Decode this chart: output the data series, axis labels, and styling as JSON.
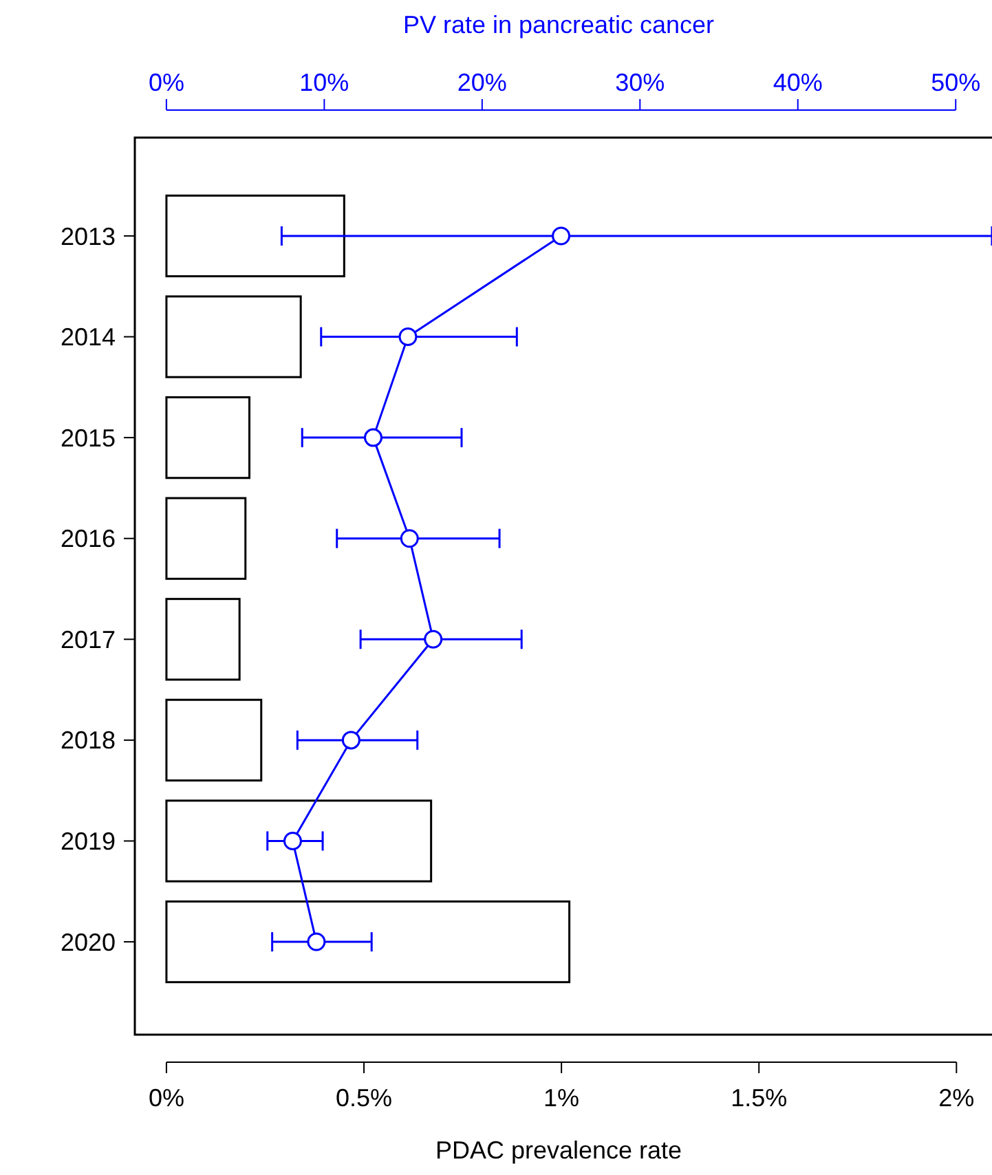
{
  "chart_data": {
    "type": "bar",
    "orientation": "horizontal",
    "categories": [
      "2013",
      "2014",
      "2015",
      "2016",
      "2017",
      "2018",
      "2019",
      "2020"
    ],
    "xlabel": "PDAC prevalence rate",
    "x2label": "PV rate in pancreatic cancer",
    "xlim": [
      -0.08,
      2.09
    ],
    "xticks": [
      {
        "value": 0,
        "label": "0%"
      },
      {
        "value": 0.5,
        "label": "0.5%"
      },
      {
        "value": 1,
        "label": "1%"
      },
      {
        "value": 1.5,
        "label": "1.5%"
      },
      {
        "value": 2,
        "label": "2%"
      }
    ],
    "x2lim": [
      -2,
      52.3
    ],
    "x2ticks": [
      {
        "value": 0,
        "label": "0%"
      },
      {
        "value": 10,
        "label": "10%"
      },
      {
        "value": 20,
        "label": "20%"
      },
      {
        "value": 30,
        "label": "30%"
      },
      {
        "value": 40,
        "label": "40%"
      },
      {
        "value": 50,
        "label": "50%"
      }
    ],
    "series": [
      {
        "color": "#000000",
        "values": [
          0.45,
          0.34,
          0.21,
          0.2,
          0.185,
          0.24,
          0.67,
          1.02
        ]
      },
      {
        "type": "line",
        "axis": "x2",
        "color": "#0000ff",
        "marker": "circle",
        "line_style": "solid",
        "values": [
          25.0,
          15.3,
          13.1,
          15.4,
          16.9,
          11.7,
          8.0,
          9.5
        ],
        "errors": [
          [
            7.3,
            52.3
          ],
          [
            9.8,
            22.2
          ],
          [
            8.6,
            18.7
          ],
          [
            10.8,
            21.1
          ],
          [
            12.3,
            22.5
          ],
          [
            8.3,
            15.9
          ],
          [
            6.4,
            9.9
          ],
          [
            6.7,
            13.0
          ]
        ]
      }
    ]
  }
}
